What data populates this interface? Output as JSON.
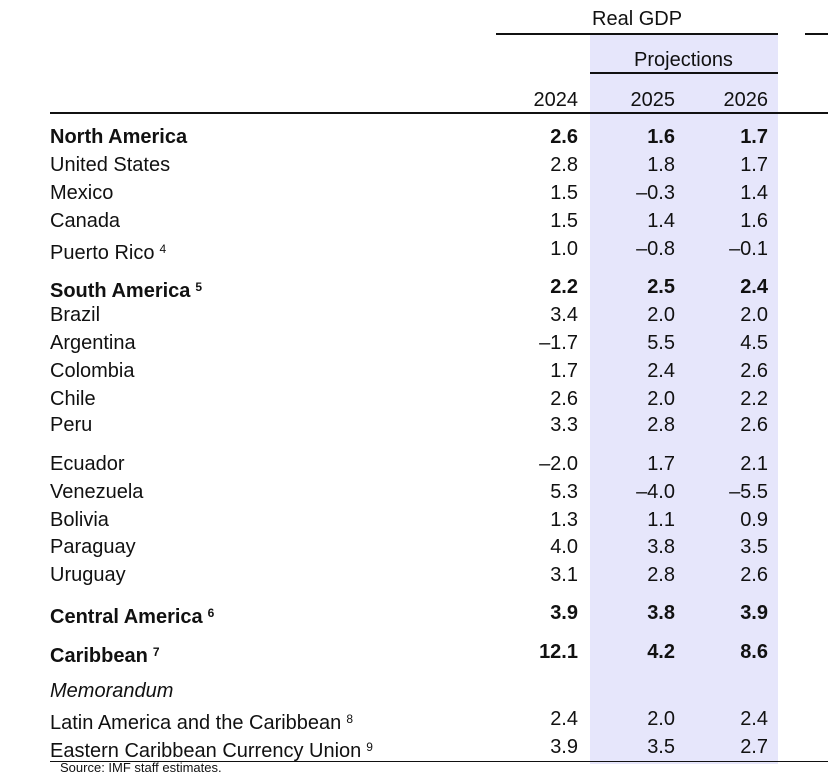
{
  "header": {
    "group_title": "Real GDP",
    "projections_label": "Projections",
    "years": [
      "2024",
      "2025",
      "2026"
    ]
  },
  "rows": [
    {
      "label": "North America",
      "sup": "",
      "values": [
        "2.6",
        "1.6",
        "1.7"
      ]
    },
    {
      "label": "United States",
      "sup": "",
      "values": [
        "2.8",
        "1.8",
        "1.7"
      ]
    },
    {
      "label": "Mexico",
      "sup": "",
      "values": [
        "1.5",
        "–0.3",
        "1.4"
      ]
    },
    {
      "label": "Canada",
      "sup": "",
      "values": [
        "1.5",
        "1.4",
        "1.6"
      ]
    },
    {
      "label": "Puerto Rico",
      "sup": "4",
      "values": [
        "1.0",
        "–0.8",
        "–0.1"
      ]
    },
    {
      "label": "South America",
      "sup": "5",
      "values": [
        "2.2",
        "2.5",
        "2.4"
      ]
    },
    {
      "label": "Brazil",
      "sup": "",
      "values": [
        "3.4",
        "2.0",
        "2.0"
      ]
    },
    {
      "label": "Argentina",
      "sup": "",
      "values": [
        "–1.7",
        "5.5",
        "4.5"
      ]
    },
    {
      "label": "Colombia",
      "sup": "",
      "values": [
        "1.7",
        "2.4",
        "2.6"
      ]
    },
    {
      "label": "Chile",
      "sup": "",
      "values": [
        "2.6",
        "2.0",
        "2.2"
      ]
    },
    {
      "label": "Peru",
      "sup": "",
      "values": [
        "3.3",
        "2.8",
        "2.6"
      ]
    },
    {
      "label": "Ecuador",
      "sup": "",
      "values": [
        "–2.0",
        "1.7",
        "2.1"
      ]
    },
    {
      "label": "Venezuela",
      "sup": "",
      "values": [
        "5.3",
        "–4.0",
        "–5.5"
      ]
    },
    {
      "label": "Bolivia",
      "sup": "",
      "values": [
        "1.3",
        "1.1",
        "0.9"
      ]
    },
    {
      "label": "Paraguay",
      "sup": "",
      "values": [
        "4.0",
        "3.8",
        "3.5"
      ]
    },
    {
      "label": "Uruguay",
      "sup": "",
      "values": [
        "3.1",
        "2.8",
        "2.6"
      ]
    },
    {
      "label": "Central America",
      "sup": "6",
      "values": [
        "3.9",
        "3.8",
        "3.9"
      ]
    },
    {
      "label": "Caribbean",
      "sup": "7",
      "values": [
        "12.1",
        "4.2",
        "8.6"
      ]
    },
    {
      "label": "Memorandum",
      "sup": "",
      "values": [
        "",
        "",
        ""
      ]
    },
    {
      "label": "Latin America and the Caribbean",
      "sup": "8",
      "values": [
        "2.4",
        "2.0",
        "2.4"
      ]
    },
    {
      "label": "Eastern Caribbean Currency Union",
      "sup": "9",
      "values": [
        "3.9",
        "3.5",
        "2.7"
      ]
    }
  ],
  "footer": {
    "source_fragment": "Source: IMF staff estimates."
  }
}
